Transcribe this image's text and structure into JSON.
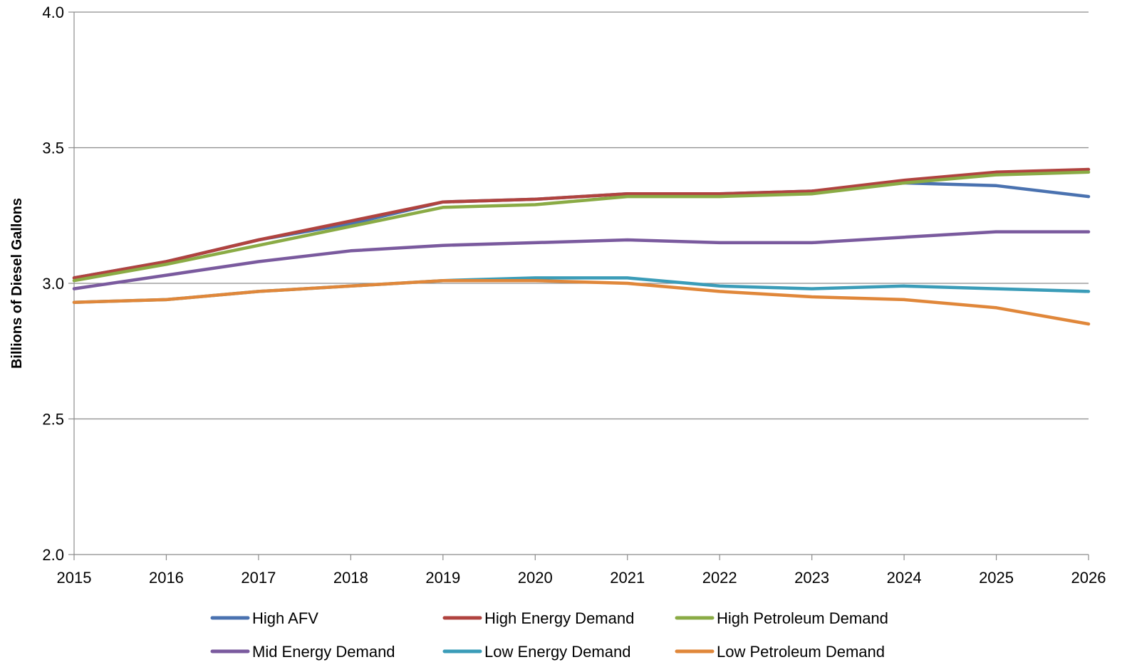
{
  "chart_data": {
    "type": "line",
    "title": "",
    "xlabel": "",
    "ylabel": "Billions of Diesel Gallons",
    "x": [
      2015,
      2016,
      2017,
      2018,
      2019,
      2020,
      2021,
      2022,
      2023,
      2024,
      2025,
      2026
    ],
    "ylim": [
      2.0,
      4.0
    ],
    "yticks": [
      "2.0",
      "2.5",
      "3.0",
      "3.5",
      "4.0"
    ],
    "xticks": [
      "2015",
      "2016",
      "2017",
      "2018",
      "2019",
      "2020",
      "2021",
      "2022",
      "2023",
      "2024",
      "2025",
      "2026"
    ],
    "grid": "horizontal",
    "legend_position": "bottom",
    "series": [
      {
        "name": "High AFV",
        "color": "#4a72b0",
        "values": [
          3.02,
          3.08,
          3.16,
          3.22,
          3.3,
          3.31,
          3.33,
          3.33,
          3.34,
          3.37,
          3.36,
          3.32
        ]
      },
      {
        "name": "High Energy Demand",
        "color": "#b0433f",
        "values": [
          3.02,
          3.08,
          3.16,
          3.23,
          3.3,
          3.31,
          3.33,
          3.33,
          3.34,
          3.38,
          3.41,
          3.42
        ]
      },
      {
        "name": "High Petroleum Demand",
        "color": "#8aab45",
        "values": [
          3.01,
          3.07,
          3.14,
          3.21,
          3.28,
          3.29,
          3.32,
          3.32,
          3.33,
          3.37,
          3.4,
          3.41
        ]
      },
      {
        "name": "Mid Energy Demand",
        "color": "#7a5a9e",
        "values": [
          2.98,
          3.03,
          3.08,
          3.12,
          3.14,
          3.15,
          3.16,
          3.15,
          3.15,
          3.17,
          3.19,
          3.19
        ]
      },
      {
        "name": "Low Energy Demand",
        "color": "#3a9cb8",
        "values": [
          2.93,
          2.94,
          2.97,
          2.99,
          3.01,
          3.02,
          3.02,
          2.99,
          2.98,
          2.99,
          2.98,
          2.97
        ]
      },
      {
        "name": "Low Petroleum Demand",
        "color": "#e0873a",
        "values": [
          2.93,
          2.94,
          2.97,
          2.99,
          3.01,
          3.01,
          3.0,
          2.97,
          2.95,
          2.94,
          2.91,
          2.85
        ]
      }
    ]
  }
}
